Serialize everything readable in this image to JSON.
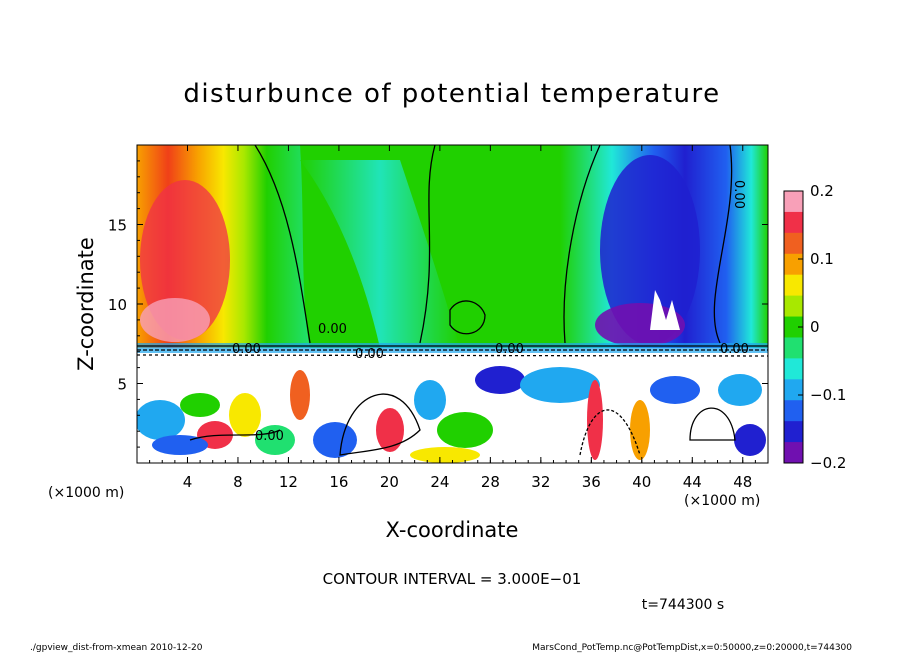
{
  "chart_data": {
    "type": "heatmap",
    "title": "disturbunce of potential temperature",
    "xlabel": "X-coordinate",
    "ylabel": "Z-coordinate",
    "x_unit_left": "(×1000 m)",
    "x_unit_right": "(×1000 m)",
    "xlim": [
      0,
      50
    ],
    "ylim": [
      0,
      20
    ],
    "x_ticks": [
      "4",
      "8",
      "12",
      "16",
      "20",
      "24",
      "28",
      "32",
      "36",
      "40",
      "44",
      "48"
    ],
    "y_ticks": [
      "5",
      "10",
      "15"
    ],
    "colorbar": {
      "range": [
        -0.2,
        0.2
      ],
      "tick_labels": [
        "0.2",
        "0.1",
        "0",
        "−0.1",
        "−0.2"
      ],
      "colors": [
        "#f8a0b8",
        "#f03048",
        "#f06020",
        "#f8a000",
        "#f8e800",
        "#a8e800",
        "#20d000",
        "#20e070",
        "#20e8d8",
        "#20a8f0",
        "#2060f0",
        "#2020d0",
        "#7010b0"
      ]
    },
    "contour_labels": [
      "0.00",
      "0.00",
      "0.00",
      "0.00",
      "0.00",
      "0.00",
      "0.00"
    ],
    "contour_interval_text": "CONTOUR INTERVAL = 3.000E−01",
    "time_text": "t=744300 s"
  },
  "footer": {
    "left": "./gpview_dist-from-xmean  2010-12-20",
    "right": "MarsCond_PotTemp.nc@PotTempDist,x=0:50000,z=0:20000,t=744300"
  }
}
